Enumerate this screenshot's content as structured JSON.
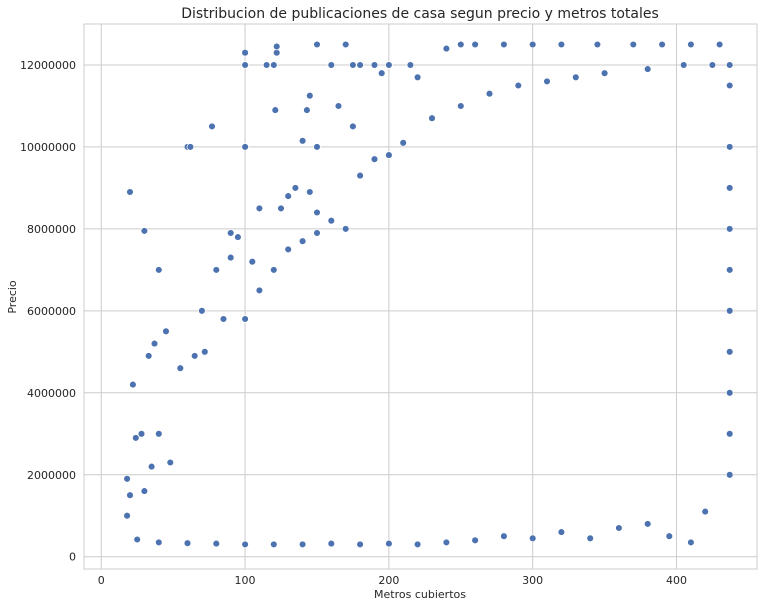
{
  "chart_data": {
    "type": "scatter",
    "title": "Distribucion de publicaciones de casa segun precio y metros totales",
    "xlabel": "Metros cubiertos",
    "ylabel": "Precio",
    "xlim": [
      -12,
      456
    ],
    "ylim": [
      -300000,
      13000000
    ],
    "xticks": [
      0,
      100,
      200,
      300,
      400
    ],
    "xtick_labels": [
      "0",
      "100",
      "200",
      "300",
      "400"
    ],
    "yticks": [
      0,
      2000000,
      4000000,
      6000000,
      8000000,
      10000000,
      12000000
    ],
    "ytick_labels": [
      "0",
      "2000000",
      "4000000",
      "6000000",
      "8000000",
      "10000000",
      "12000000"
    ],
    "grid": true,
    "legend": "none",
    "point_color": "#4c72b0",
    "point_edge_color": "#ffffff",
    "background_color": "#ffffff",
    "grid_color": "#cccccc",
    "series": [
      {
        "points": [
          [
            20,
            8900000
          ],
          [
            30,
            7950000
          ],
          [
            40,
            7000000
          ],
          [
            45,
            5500000
          ],
          [
            60,
            10000000
          ],
          [
            62,
            10000000
          ],
          [
            77,
            10500000
          ],
          [
            90,
            7900000
          ],
          [
            100,
            12000000
          ],
          [
            100,
            12300000
          ],
          [
            100,
            10000000
          ],
          [
            115,
            12000000
          ],
          [
            120,
            12000000
          ],
          [
            122,
            12300000
          ],
          [
            122,
            12450000
          ],
          [
            121,
            10900000
          ],
          [
            140,
            10150000
          ],
          [
            143,
            10900000
          ],
          [
            145,
            11250000
          ],
          [
            150,
            12500000
          ],
          [
            170,
            12500000
          ],
          [
            150,
            10000000
          ],
          [
            165,
            11000000
          ],
          [
            175,
            10500000
          ],
          [
            160,
            12000000
          ],
          [
            175,
            12000000
          ],
          [
            180,
            12000000
          ],
          [
            190,
            12000000
          ],
          [
            195,
            11800000
          ],
          [
            200,
            12000000
          ],
          [
            215,
            12000000
          ],
          [
            220,
            11700000
          ],
          [
            240,
            12400000
          ],
          [
            250,
            12500000
          ],
          [
            260,
            12500000
          ],
          [
            280,
            12500000
          ],
          [
            300,
            12500000
          ],
          [
            320,
            12500000
          ],
          [
            345,
            12500000
          ],
          [
            370,
            12500000
          ],
          [
            390,
            12500000
          ],
          [
            410,
            12500000
          ],
          [
            430,
            12500000
          ],
          [
            18,
            1900000
          ],
          [
            22,
            4200000
          ],
          [
            28,
            3000000
          ],
          [
            30,
            1600000
          ],
          [
            35,
            2200000
          ],
          [
            40,
            3000000
          ],
          [
            48,
            2300000
          ],
          [
            55,
            4600000
          ],
          [
            70,
            6000000
          ],
          [
            80,
            7000000
          ],
          [
            90,
            7300000
          ],
          [
            95,
            7800000
          ],
          [
            105,
            7200000
          ],
          [
            110,
            8500000
          ],
          [
            125,
            8500000
          ],
          [
            130,
            8800000
          ],
          [
            135,
            9000000
          ],
          [
            145,
            8900000
          ],
          [
            150,
            8400000
          ],
          [
            160,
            8200000
          ],
          [
            170,
            8000000
          ],
          [
            180,
            9300000
          ],
          [
            190,
            9700000
          ],
          [
            200,
            9800000
          ],
          [
            210,
            10100000
          ],
          [
            230,
            10700000
          ],
          [
            250,
            11000000
          ],
          [
            270,
            11300000
          ],
          [
            290,
            11500000
          ],
          [
            310,
            11600000
          ],
          [
            330,
            11700000
          ],
          [
            350,
            11800000
          ],
          [
            380,
            11900000
          ],
          [
            405,
            12000000
          ],
          [
            425,
            12000000
          ],
          [
            437,
            12000000
          ],
          [
            437,
            11500000
          ],
          [
            437,
            10000000
          ],
          [
            437,
            9000000
          ],
          [
            437,
            8000000
          ],
          [
            437,
            7000000
          ],
          [
            437,
            6000000
          ],
          [
            437,
            5000000
          ],
          [
            437,
            4000000
          ],
          [
            437,
            3000000
          ],
          [
            437,
            2000000
          ],
          [
            420,
            1100000
          ],
          [
            410,
            350000
          ],
          [
            395,
            500000
          ],
          [
            380,
            800000
          ],
          [
            360,
            700000
          ],
          [
            340,
            450000
          ],
          [
            320,
            600000
          ],
          [
            300,
            450000
          ],
          [
            280,
            500000
          ],
          [
            260,
            400000
          ],
          [
            240,
            350000
          ],
          [
            220,
            300000
          ],
          [
            200,
            320000
          ],
          [
            180,
            300000
          ],
          [
            160,
            320000
          ],
          [
            140,
            300000
          ],
          [
            120,
            300000
          ],
          [
            100,
            300000
          ],
          [
            80,
            320000
          ],
          [
            60,
            330000
          ],
          [
            40,
            350000
          ],
          [
            25,
            420000
          ],
          [
            18,
            1000000
          ],
          [
            20,
            1500000
          ],
          [
            24,
            2900000
          ],
          [
            33,
            4900000
          ],
          [
            37,
            5200000
          ],
          [
            65,
            4900000
          ],
          [
            72,
            5000000
          ],
          [
            85,
            5800000
          ],
          [
            100,
            5800000
          ],
          [
            110,
            6500000
          ],
          [
            120,
            7000000
          ],
          [
            130,
            7500000
          ],
          [
            140,
            7700000
          ],
          [
            150,
            7900000
          ]
        ]
      }
    ]
  }
}
